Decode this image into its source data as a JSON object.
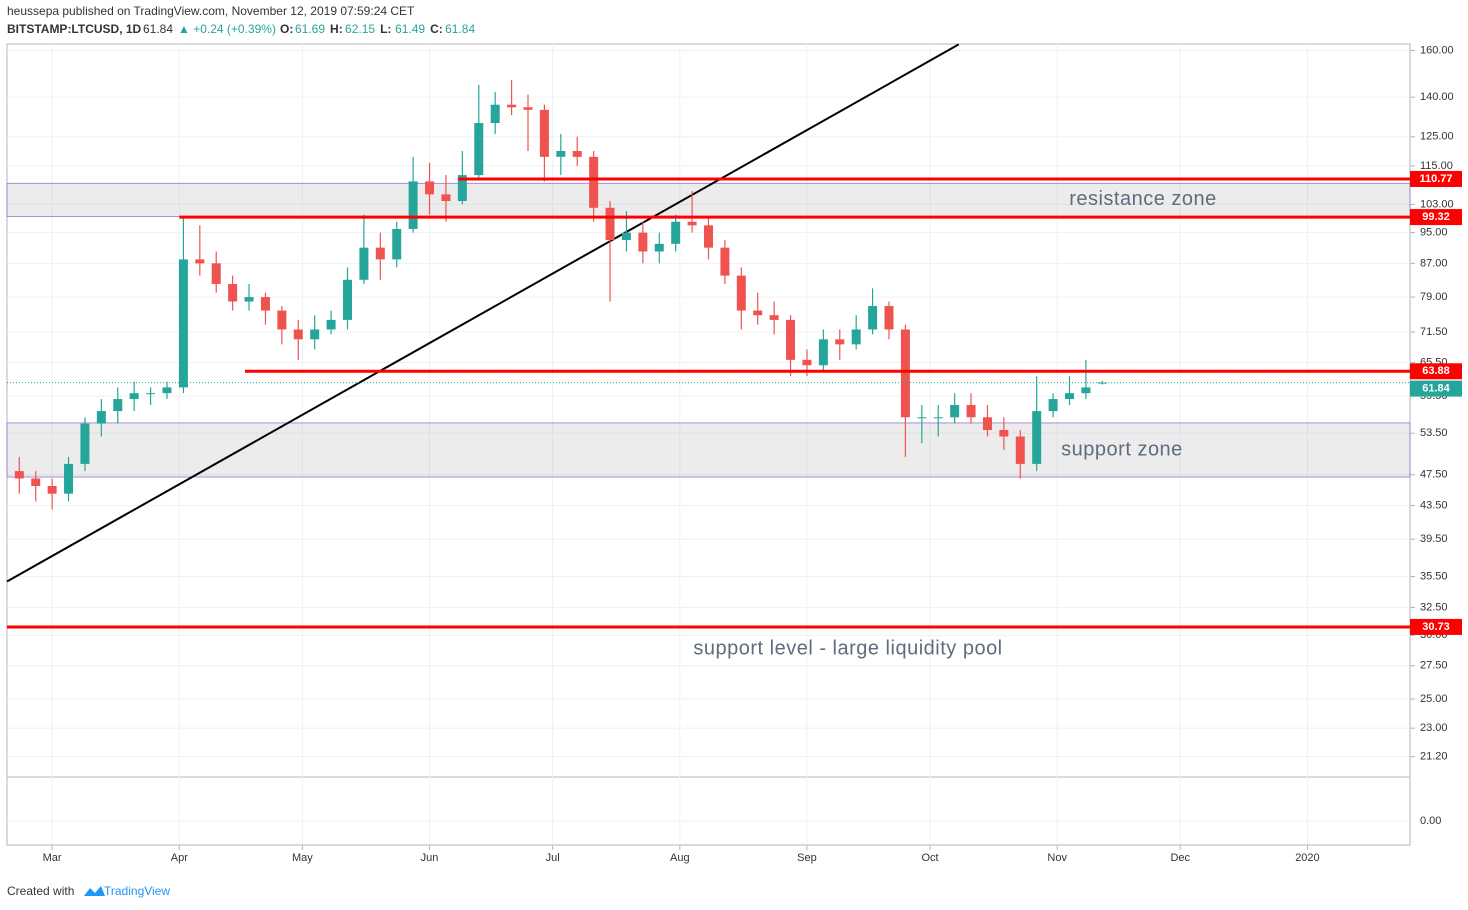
{
  "header": {
    "publisher": "heussepa published on TradingView.com, November 12, 2019 07:59:24 CET",
    "symbol": "BITSTAMP:LTCUSD, 1D",
    "last": "61.84",
    "change": "▲ +0.24 (+0.39%)",
    "ohlc": [
      {
        "key": "O:",
        "value": "61.69"
      },
      {
        "key": "H:",
        "value": "62.15"
      },
      {
        "key": "L:",
        "value": "61.49"
      },
      {
        "key": "C:",
        "value": "61.84"
      }
    ]
  },
  "footer": {
    "text": "Created with",
    "brand": "TradingView"
  },
  "chart_data": {
    "type": "candlestick",
    "log_scale": true,
    "grid": true,
    "up_color": "#26a69a",
    "down_color": "#ef5350",
    "xlim": [
      "2019-02-18",
      "2020-01-26"
    ],
    "xticks": [
      {
        "value": "2019-03-01",
        "label": "Mar"
      },
      {
        "value": "2019-04-01",
        "label": "Apr"
      },
      {
        "value": "2019-05-01",
        "label": "May"
      },
      {
        "value": "2019-06-01",
        "label": "Jun"
      },
      {
        "value": "2019-07-01",
        "label": "Jul"
      },
      {
        "value": "2019-08-01",
        "label": "Aug"
      },
      {
        "value": "2019-09-01",
        "label": "Sep"
      },
      {
        "value": "2019-10-01",
        "label": "Oct"
      },
      {
        "value": "2019-11-01",
        "label": "Nov"
      },
      {
        "value": "2019-12-01",
        "label": "Dec"
      },
      {
        "value": "2020-01-01",
        "label": "2020"
      }
    ],
    "ylim": [
      20,
      163
    ],
    "yticks": [
      {
        "value": 160,
        "label": "160.00"
      },
      {
        "value": 140,
        "label": "140.00"
      },
      {
        "value": 125,
        "label": "125.00"
      },
      {
        "value": 115,
        "label": "115.00"
      },
      {
        "value": 103,
        "label": "103.00"
      },
      {
        "value": 95,
        "label": "95.00"
      },
      {
        "value": 87,
        "label": "87.00"
      },
      {
        "value": 79,
        "label": "79.00"
      },
      {
        "value": 71.5,
        "label": "71.50"
      },
      {
        "value": 65.5,
        "label": "65.50"
      },
      {
        "value": 59.5,
        "label": "59.50"
      },
      {
        "value": 53.5,
        "label": "53.50"
      },
      {
        "value": 47.5,
        "label": "47.50"
      },
      {
        "value": 43.5,
        "label": "43.50"
      },
      {
        "value": 39.5,
        "label": "39.50"
      },
      {
        "value": 35.5,
        "label": "35.50"
      },
      {
        "value": 32.5,
        "label": "32.50"
      },
      {
        "value": 30,
        "label": "30.00"
      },
      {
        "value": 27.5,
        "label": "27.50"
      },
      {
        "value": 25,
        "label": "25.00"
      },
      {
        "value": 23,
        "label": "23.00"
      },
      {
        "value": 21.2,
        "label": "21.20"
      }
    ],
    "lower_pane_ticks": [
      {
        "value": 0,
        "label": "0.00"
      }
    ],
    "x": [
      "2019-02-21",
      "2019-02-25",
      "2019-03-01",
      "2019-03-05",
      "2019-03-09",
      "2019-03-13",
      "2019-03-17",
      "2019-03-21",
      "2019-03-25",
      "2019-03-29",
      "2019-04-02",
      "2019-04-06",
      "2019-04-10",
      "2019-04-14",
      "2019-04-18",
      "2019-04-22",
      "2019-04-26",
      "2019-04-30",
      "2019-05-04",
      "2019-05-08",
      "2019-05-12",
      "2019-05-16",
      "2019-05-20",
      "2019-05-24",
      "2019-05-28",
      "2019-06-01",
      "2019-06-05",
      "2019-06-09",
      "2019-06-13",
      "2019-06-17",
      "2019-06-21",
      "2019-06-25",
      "2019-06-29",
      "2019-07-03",
      "2019-07-07",
      "2019-07-11",
      "2019-07-15",
      "2019-07-19",
      "2019-07-23",
      "2019-07-27",
      "2019-07-31",
      "2019-08-04",
      "2019-08-08",
      "2019-08-12",
      "2019-08-16",
      "2019-08-20",
      "2019-08-24",
      "2019-08-28",
      "2019-09-01",
      "2019-09-05",
      "2019-09-09",
      "2019-09-13",
      "2019-09-17",
      "2019-09-21",
      "2019-09-25",
      "2019-09-29",
      "2019-10-03",
      "2019-10-07",
      "2019-10-11",
      "2019-10-15",
      "2019-10-19",
      "2019-10-23",
      "2019-10-27",
      "2019-10-31",
      "2019-11-04",
      "2019-11-08",
      "2019-11-12"
    ],
    "candles": [
      [
        48,
        50,
        45,
        47
      ],
      [
        47,
        48,
        44,
        46
      ],
      [
        46,
        47,
        43,
        45
      ],
      [
        45,
        50,
        44,
        49
      ],
      [
        49,
        56,
        48,
        55
      ],
      [
        55,
        59,
        53,
        57
      ],
      [
        57,
        61,
        55,
        59
      ],
      [
        59,
        62,
        57,
        60
      ],
      [
        60,
        61,
        58,
        60
      ],
      [
        60,
        62,
        59,
        61
      ],
      [
        61,
        99,
        60,
        88
      ],
      [
        88,
        97,
        84,
        87
      ],
      [
        87,
        90,
        80,
        82
      ],
      [
        82,
        84,
        76,
        78
      ],
      [
        78,
        82,
        76,
        79
      ],
      [
        79,
        80,
        73,
        76
      ],
      [
        76,
        77,
        69,
        72
      ],
      [
        72,
        74,
        66,
        70
      ],
      [
        70,
        75,
        68,
        72
      ],
      [
        72,
        76,
        71,
        74
      ],
      [
        74,
        86,
        72,
        83
      ],
      [
        83,
        100,
        82,
        91
      ],
      [
        91,
        95,
        83,
        88
      ],
      [
        88,
        98,
        86,
        96
      ],
      [
        96,
        118,
        95,
        110
      ],
      [
        110,
        116,
        100,
        106
      ],
      [
        106,
        112,
        98,
        104
      ],
      [
        104,
        120,
        103,
        112
      ],
      [
        112,
        145,
        111,
        130
      ],
      [
        130,
        142,
        126,
        137
      ],
      [
        137,
        147,
        133,
        136
      ],
      [
        136,
        141,
        120,
        135
      ],
      [
        135,
        137,
        110,
        118
      ],
      [
        118,
        126,
        112,
        120
      ],
      [
        120,
        125,
        115,
        118
      ],
      [
        118,
        120,
        98,
        102
      ],
      [
        102,
        104,
        78,
        93
      ],
      [
        93,
        101,
        90,
        95
      ],
      [
        95,
        98,
        87,
        90
      ],
      [
        90,
        95,
        87,
        92
      ],
      [
        92,
        100,
        90,
        98
      ],
      [
        98,
        107,
        95,
        97
      ],
      [
        97,
        99,
        88,
        91
      ],
      [
        91,
        93,
        82,
        84
      ],
      [
        84,
        86,
        72,
        76
      ],
      [
        76,
        80,
        73,
        75
      ],
      [
        75,
        78,
        71,
        74
      ],
      [
        74,
        75,
        63,
        66
      ],
      [
        66,
        68,
        63,
        65
      ],
      [
        65,
        72,
        64,
        70
      ],
      [
        70,
        72,
        66,
        69
      ],
      [
        69,
        75,
        68,
        72
      ],
      [
        72,
        81,
        71,
        77
      ],
      [
        77,
        78,
        70,
        72
      ],
      [
        72,
        73,
        50,
        56
      ],
      [
        56,
        58,
        52,
        56
      ],
      [
        56,
        58,
        53,
        56
      ],
      [
        56,
        60,
        55,
        58
      ],
      [
        58,
        60,
        55,
        56
      ],
      [
        56,
        58,
        53,
        54
      ],
      [
        54,
        56,
        51,
        53
      ],
      [
        53,
        54,
        47,
        49
      ],
      [
        49,
        63,
        48,
        57
      ],
      [
        57,
        60,
        56,
        59
      ],
      [
        59,
        63,
        58,
        60
      ],
      [
        60,
        66,
        59,
        61
      ],
      [
        61.69,
        62.15,
        61.49,
        61.84
      ]
    ],
    "last_price": 61.84,
    "levels": [
      {
        "value": 110.77,
        "from": "2019-06-08"
      },
      {
        "value": 99.32,
        "from": "2019-04-01"
      },
      {
        "value": 63.88,
        "from": "2019-04-17"
      },
      {
        "value": 30.73,
        "from": "2019-02-18"
      }
    ],
    "zones": [
      {
        "label": "resistance zone",
        "low": 99.5,
        "high": 109.4
      },
      {
        "label": "support zone",
        "low": 47.2,
        "high": 55.1
      }
    ],
    "annotations": [
      {
        "text": "support level - large liquidity pool"
      }
    ],
    "trendline": {
      "x": [
        "2019-02-18",
        "2019-10-08"
      ],
      "y": [
        35,
        162.8
      ]
    }
  }
}
